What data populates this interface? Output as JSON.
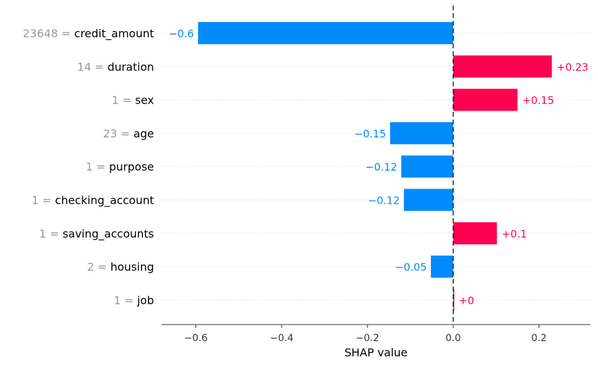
{
  "chart_data": {
    "type": "bar",
    "orientation": "horizontal",
    "xlabel": "SHAP value",
    "xlim": [
      -0.68,
      0.32
    ],
    "xticks": [
      -0.6,
      -0.4,
      -0.2,
      0.0,
      0.2
    ],
    "xtick_labels": [
      "−0.6",
      "−0.4",
      "−0.2",
      "0.0",
      "0.2"
    ],
    "grid": "horizontal dotted",
    "bars": [
      {
        "feature_value": "23648",
        "feature": "credit_amount",
        "value": -0.595,
        "label": "−0.6"
      },
      {
        "feature_value": "14",
        "feature": "duration",
        "value": 0.23,
        "label": "+0.23"
      },
      {
        "feature_value": "1",
        "feature": "sex",
        "value": 0.15,
        "label": "+0.15"
      },
      {
        "feature_value": "23",
        "feature": "age",
        "value": -0.147,
        "label": "−0.15"
      },
      {
        "feature_value": "1",
        "feature": "purpose",
        "value": -0.121,
        "label": "−0.12"
      },
      {
        "feature_value": "1",
        "feature": "checking_account",
        "value": -0.115,
        "label": "−0.12"
      },
      {
        "feature_value": "1",
        "feature": "saving_accounts",
        "value": 0.102,
        "label": "+0.1"
      },
      {
        "feature_value": "2",
        "feature": "housing",
        "value": -0.052,
        "label": "−0.05"
      },
      {
        "feature_value": "1",
        "feature": "job",
        "value": 0.002,
        "label": "+0"
      }
    ],
    "colors": {
      "positive": "#ff0051",
      "negative": "#008bfb"
    }
  }
}
